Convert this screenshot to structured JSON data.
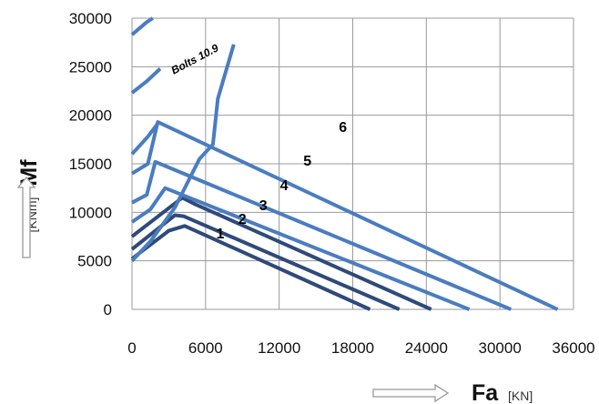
{
  "chart_data": {
    "type": "line",
    "title": "",
    "xlabel": "Fa",
    "xlabel_unit": "[KN]",
    "ylabel": "Mf",
    "ylabel_unit": "[KNm]",
    "xlim": [
      0,
      36000
    ],
    "ylim": [
      0,
      30000
    ],
    "xticks": [
      "0",
      "6000",
      "12000",
      "18000",
      "24000",
      "30000",
      "36000"
    ],
    "yticks": [
      "0",
      "5000",
      "10000",
      "15000",
      "20000",
      "25000",
      "30000"
    ],
    "grid": true,
    "annotation": "Bolts 10.9",
    "color_dark": "#2E4A7A",
    "color_light": "#4A7CC0",
    "series": [
      {
        "name": "1",
        "points": [
          [
            0,
            5200
          ],
          [
            300,
            5500
          ],
          [
            3000,
            8100
          ],
          [
            4300,
            8600
          ],
          [
            19400,
            0
          ]
        ]
      },
      {
        "name": "2",
        "points": [
          [
            0,
            6200
          ],
          [
            300,
            6500
          ],
          [
            3500,
            9700
          ],
          [
            4200,
            9600
          ],
          [
            21800,
            0
          ]
        ]
      },
      {
        "name": "3",
        "points": [
          [
            0,
            7500
          ],
          [
            300,
            7800
          ],
          [
            4100,
            11500
          ],
          [
            5200,
            10800
          ],
          [
            24400,
            0
          ]
        ]
      },
      {
        "name": "4",
        "points": [
          [
            0,
            9000
          ],
          [
            1500,
            10300
          ],
          [
            2700,
            12500
          ],
          [
            27500,
            0
          ]
        ]
      },
      {
        "name": "5",
        "points": [
          [
            0,
            11000
          ],
          [
            1200,
            11800
          ],
          [
            1900,
            15200
          ],
          [
            30900,
            0
          ]
        ]
      },
      {
        "name": "6",
        "points": [
          [
            0,
            14000
          ],
          [
            1300,
            15000
          ],
          [
            2100,
            19300
          ],
          [
            34700,
            0
          ]
        ]
      },
      {
        "name": "",
        "points": [
          [
            0,
            16000
          ],
          [
            1300,
            17800
          ],
          [
            2200,
            19300
          ]
        ]
      },
      {
        "name": "",
        "points": [
          [
            0,
            22300
          ],
          [
            1200,
            23500
          ],
          [
            2300,
            24800
          ]
        ]
      },
      {
        "name": "",
        "points": [
          [
            0,
            28300
          ],
          [
            1200,
            29600
          ],
          [
            1700,
            30000
          ]
        ]
      }
    ],
    "bolt_line": {
      "name": "Bolts 10.9",
      "points": [
        [
          0,
          5000
        ],
        [
          1500,
          7000
        ],
        [
          3500,
          10500
        ],
        [
          5500,
          15500
        ],
        [
          6600,
          17000
        ],
        [
          7000,
          21700
        ],
        [
          8300,
          27300
        ]
      ]
    },
    "series_label_positions": [
      {
        "text": "1",
        "x": 7200,
        "y": 7300
      },
      {
        "text": "2",
        "x": 9000,
        "y": 8800
      },
      {
        "text": "3",
        "x": 10700,
        "y": 10200
      },
      {
        "text": "4",
        "x": 12400,
        "y": 12300
      },
      {
        "text": "5",
        "x": 14300,
        "y": 14800
      },
      {
        "text": "6",
        "x": 17200,
        "y": 18300
      }
    ]
  }
}
